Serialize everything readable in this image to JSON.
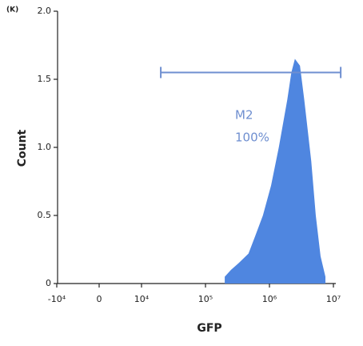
{
  "chart_data": {
    "type": "area",
    "y_unit": "(K)",
    "xlabel": "GFP",
    "ylabel": "Count",
    "xscale": "biexponential",
    "x": [
      200000,
      250000,
      330000,
      470000,
      600000,
      790000,
      1060000,
      1400000,
      1900000,
      2200000,
      2500000,
      3000000,
      3500000,
      4500000,
      5300000,
      6300000,
      7500000
    ],
    "values": [
      0.05,
      0.1,
      0.15,
      0.22,
      0.35,
      0.5,
      0.72,
      1.0,
      1.35,
      1.55,
      1.65,
      1.6,
      1.35,
      0.9,
      0.5,
      0.2,
      0.05
    ],
    "color": "#4f86e0",
    "xlim": [
      -10000,
      10000000
    ],
    "xticks": [
      {
        "value": -10000,
        "label": "-10⁴"
      },
      0,
      {
        "value": 10000,
        "label": "10⁴"
      },
      {
        "value": 100000,
        "label": "10⁵"
      },
      {
        "value": 1000000,
        "label": "10⁶"
      },
      {
        "value": 10000000,
        "label": "10⁷"
      }
    ],
    "ylim": [
      0,
      2
    ],
    "yticks": [
      0,
      0.5,
      {
        "value": 1,
        "label": "1.0"
      },
      1.5,
      {
        "value": 2,
        "label": "2.0"
      }
    ],
    "gate": {
      "label": "M2",
      "x": [
        20000,
        13000000
      ],
      "y": 1.55,
      "percent": 100,
      "percent_label": "100%",
      "color": "#6f8fd0"
    }
  }
}
